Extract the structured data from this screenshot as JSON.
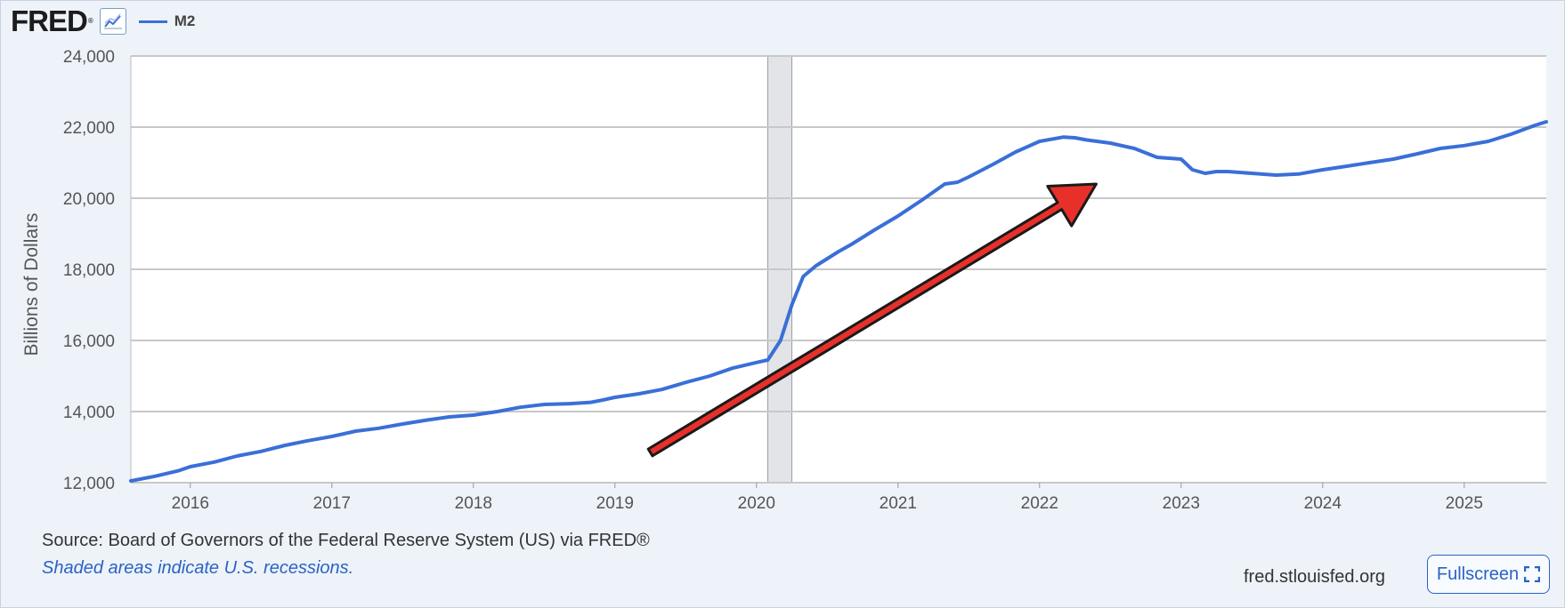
{
  "header": {
    "logo_text": "FRED",
    "logo_reg": "®",
    "legend_label": "M2",
    "icon": "line-graph-icon"
  },
  "colors": {
    "series": "#3a6fd8",
    "recession": "#e2e4e8",
    "arrow_fill": "#e8302a",
    "arrow_stroke": "#1a1a1a",
    "grid": "#c8c8c8",
    "background": "#eef3fa",
    "plot_bg": "#ffffff"
  },
  "footer": {
    "source": "Source: Board of Governors of the Federal Reserve System (US) via FRED®",
    "note": "Shaded areas indicate U.S. recessions.",
    "site": "fred.stlouisfed.org",
    "fullscreen_label": "Fullscreen",
    "fullscreen_icon": "expand-icon"
  },
  "chart_data": {
    "type": "line",
    "ylabel": "Billions of Dollars",
    "ylim": [
      12000,
      24000
    ],
    "xlim": [
      2015.58,
      2025.58
    ],
    "yticks": [
      12000,
      14000,
      16000,
      18000,
      20000,
      22000,
      24000
    ],
    "ytick_labels": [
      "12,000",
      "14,000",
      "16,000",
      "18,000",
      "20,000",
      "22,000",
      "24,000"
    ],
    "xticks": [
      2016,
      2017,
      2018,
      2019,
      2020,
      2021,
      2022,
      2023,
      2024,
      2025
    ],
    "xtick_labels": [
      "2016",
      "2017",
      "2018",
      "2019",
      "2020",
      "2021",
      "2022",
      "2023",
      "2024",
      "2025"
    ],
    "grid": "horizontal",
    "recessions": [
      [
        2020.08,
        2020.25
      ]
    ],
    "annotation": {
      "type": "arrow",
      "from": [
        2019.25,
        12850
      ],
      "to": [
        2022.4,
        20400
      ]
    },
    "series": [
      {
        "name": "M2",
        "x": [
          2015.58,
          2015.75,
          2015.92,
          2016.0,
          2016.17,
          2016.33,
          2016.5,
          2016.67,
          2016.83,
          2017.0,
          2017.17,
          2017.33,
          2017.5,
          2017.67,
          2017.83,
          2018.0,
          2018.17,
          2018.33,
          2018.5,
          2018.67,
          2018.83,
          2018.92,
          2019.0,
          2019.17,
          2019.33,
          2019.5,
          2019.67,
          2019.83,
          2020.0,
          2020.08,
          2020.17,
          2020.25,
          2020.33,
          2020.42,
          2020.5,
          2020.58,
          2020.67,
          2020.83,
          2021.0,
          2021.17,
          2021.33,
          2021.42,
          2021.5,
          2021.67,
          2021.83,
          2022.0,
          2022.17,
          2022.25,
          2022.33,
          2022.5,
          2022.67,
          2022.83,
          2023.0,
          2023.08,
          2023.17,
          2023.25,
          2023.33,
          2023.5,
          2023.67,
          2023.83,
          2024.0,
          2024.17,
          2024.33,
          2024.5,
          2024.67,
          2024.83,
          2025.0,
          2025.17,
          2025.33,
          2025.5,
          2025.58
        ],
        "values": [
          12050,
          12180,
          12340,
          12450,
          12580,
          12750,
          12880,
          13050,
          13180,
          13300,
          13450,
          13530,
          13650,
          13760,
          13850,
          13900,
          14000,
          14120,
          14200,
          14220,
          14260,
          14330,
          14400,
          14500,
          14620,
          14820,
          15000,
          15220,
          15380,
          15450,
          16000,
          17000,
          17800,
          18100,
          18300,
          18500,
          18700,
          19100,
          19500,
          19950,
          20400,
          20450,
          20600,
          20950,
          21300,
          21600,
          21720,
          21700,
          21640,
          21550,
          21400,
          21150,
          21100,
          20800,
          20700,
          20750,
          20750,
          20700,
          20650,
          20680,
          20800,
          20900,
          21000,
          21100,
          21250,
          21400,
          21480,
          21600,
          21800,
          22050,
          22150
        ]
      }
    ]
  }
}
